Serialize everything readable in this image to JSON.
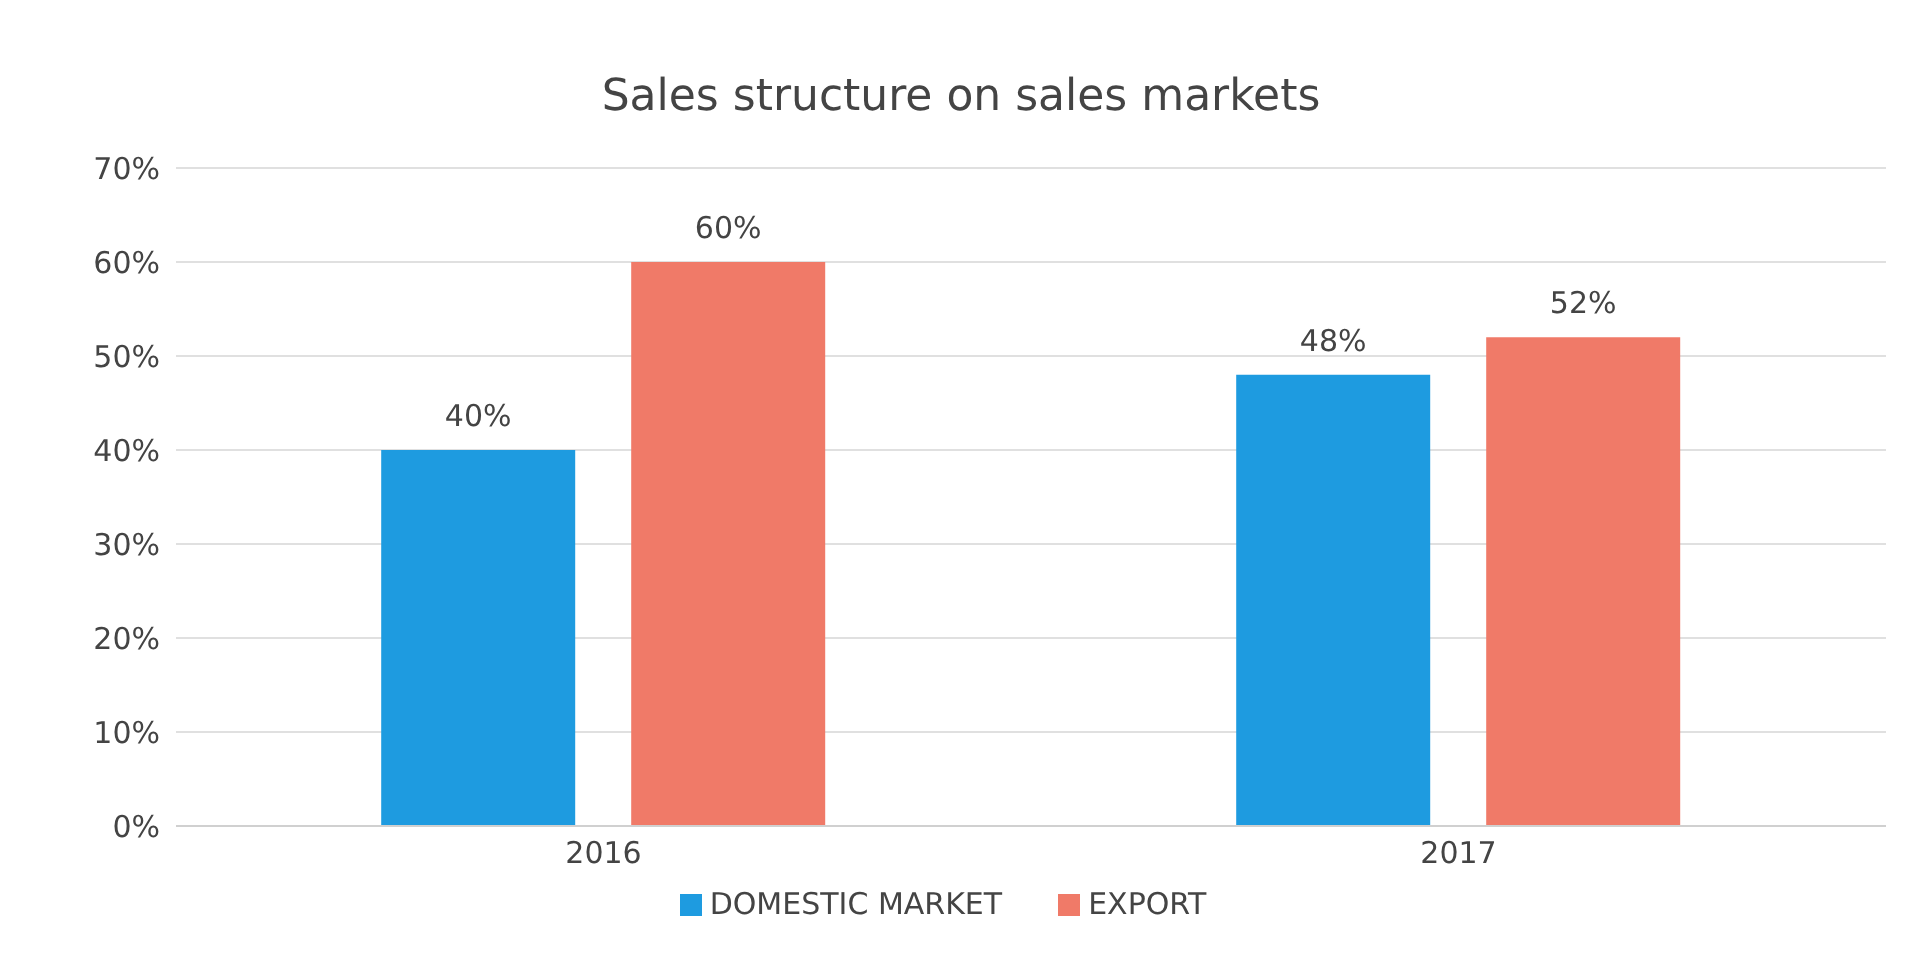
{
  "chart_data": {
    "type": "bar",
    "title": "Sales structure on sales markets",
    "categories": [
      "2016",
      "2017"
    ],
    "series": [
      {
        "name": "DOMESTIC MARKET",
        "color": "#1e9be0",
        "values": [
          40,
          48
        ],
        "value_labels": [
          "40%",
          "48%"
        ]
      },
      {
        "name": "EXPORT",
        "color": "#f07a68",
        "values": [
          60,
          52
        ],
        "value_labels": [
          "60%",
          "52%"
        ]
      }
    ],
    "ylim": [
      0,
      70
    ],
    "yticks": [
      {
        "value": 0,
        "label": "0%"
      },
      {
        "value": 10,
        "label": "10%"
      },
      {
        "value": 20,
        "label": "20%"
      },
      {
        "value": 30,
        "label": "30%"
      },
      {
        "value": 40,
        "label": "40%"
      },
      {
        "value": 50,
        "label": "50%"
      },
      {
        "value": 60,
        "label": "60%"
      },
      {
        "value": 70,
        "label": "70%"
      }
    ],
    "grid": "y",
    "legend": "bottom"
  }
}
